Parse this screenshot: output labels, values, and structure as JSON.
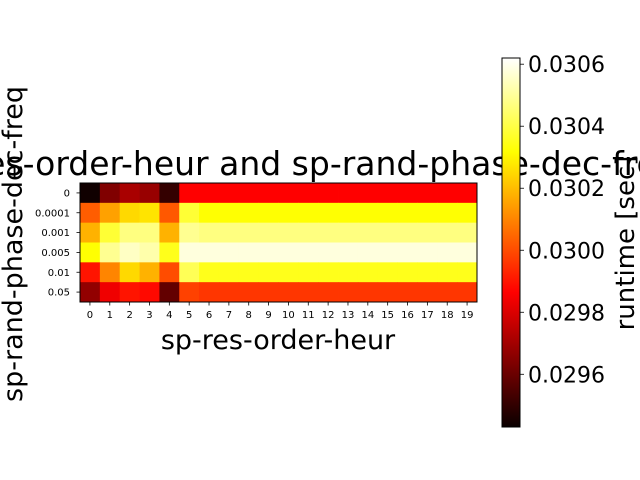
{
  "chart_data": {
    "type": "heatmap",
    "title": "sp-res-order-heur and sp-rand-phase-dec-freq",
    "xlabel": "sp-res-order-heur",
    "ylabel": "sp-rand-phase-dec-freq",
    "x_categories": [
      "0",
      "1",
      "2",
      "3",
      "4",
      "5",
      "6",
      "7",
      "8",
      "9",
      "10",
      "11",
      "12",
      "13",
      "14",
      "15",
      "16",
      "17",
      "18",
      "19"
    ],
    "y_categories": [
      "0",
      "0.0001",
      "0.001",
      "0.005",
      "0.01",
      "0.05"
    ],
    "values": [
      [
        0.02944,
        0.02963,
        0.0297,
        0.02967,
        0.0295,
        0.02985,
        0.02985,
        0.02985,
        0.02985,
        0.02985,
        0.02985,
        0.02985,
        0.02985,
        0.02985,
        0.02985,
        0.02985,
        0.02985,
        0.02985,
        0.02985,
        0.02985
      ],
      [
        0.03003,
        0.03015,
        0.03025,
        0.03027,
        0.03002,
        0.03038,
        0.03032,
        0.03032,
        0.03032,
        0.03032,
        0.03032,
        0.03032,
        0.03032,
        0.03032,
        0.03032,
        0.03032,
        0.03032,
        0.03032,
        0.03032,
        0.03032
      ],
      [
        0.03018,
        0.03038,
        0.03047,
        0.03047,
        0.03018,
        0.03049,
        0.03047,
        0.03047,
        0.03047,
        0.03047,
        0.03047,
        0.03047,
        0.03047,
        0.03047,
        0.03047,
        0.03047,
        0.03047,
        0.03047,
        0.03047,
        0.03047
      ],
      [
        0.03032,
        0.03049,
        0.03055,
        0.03052,
        0.03035,
        0.03058,
        0.03058,
        0.03058,
        0.03058,
        0.03058,
        0.03058,
        0.03058,
        0.03058,
        0.03058,
        0.03058,
        0.03058,
        0.03058,
        0.03058,
        0.03058,
        0.03058
      ],
      [
        0.0299,
        0.0301,
        0.03025,
        0.03018,
        0.03,
        0.03042,
        0.03035,
        0.03035,
        0.03035,
        0.03035,
        0.03035,
        0.03035,
        0.03035,
        0.03035,
        0.03035,
        0.03035,
        0.03035,
        0.03035,
        0.03035,
        0.03035
      ],
      [
        0.02966,
        0.02982,
        0.0299,
        0.02988,
        0.02958,
        0.02998,
        0.02996,
        0.02996,
        0.02996,
        0.02996,
        0.02996,
        0.02996,
        0.02996,
        0.02996,
        0.02996,
        0.02996,
        0.02996,
        0.02996,
        0.02996,
        0.02996
      ]
    ],
    "colormap": "hot",
    "colorbar": {
      "label": "runtime [sec]",
      "range": [
        0.02943,
        0.03062
      ],
      "ticks": [
        0.0296,
        0.0298,
        0.03,
        0.0302,
        0.0304,
        0.0306
      ],
      "tick_labels": [
        "0.0296",
        "0.0298",
        "0.0300",
        "0.0302",
        "0.0304",
        "0.0306"
      ]
    }
  }
}
